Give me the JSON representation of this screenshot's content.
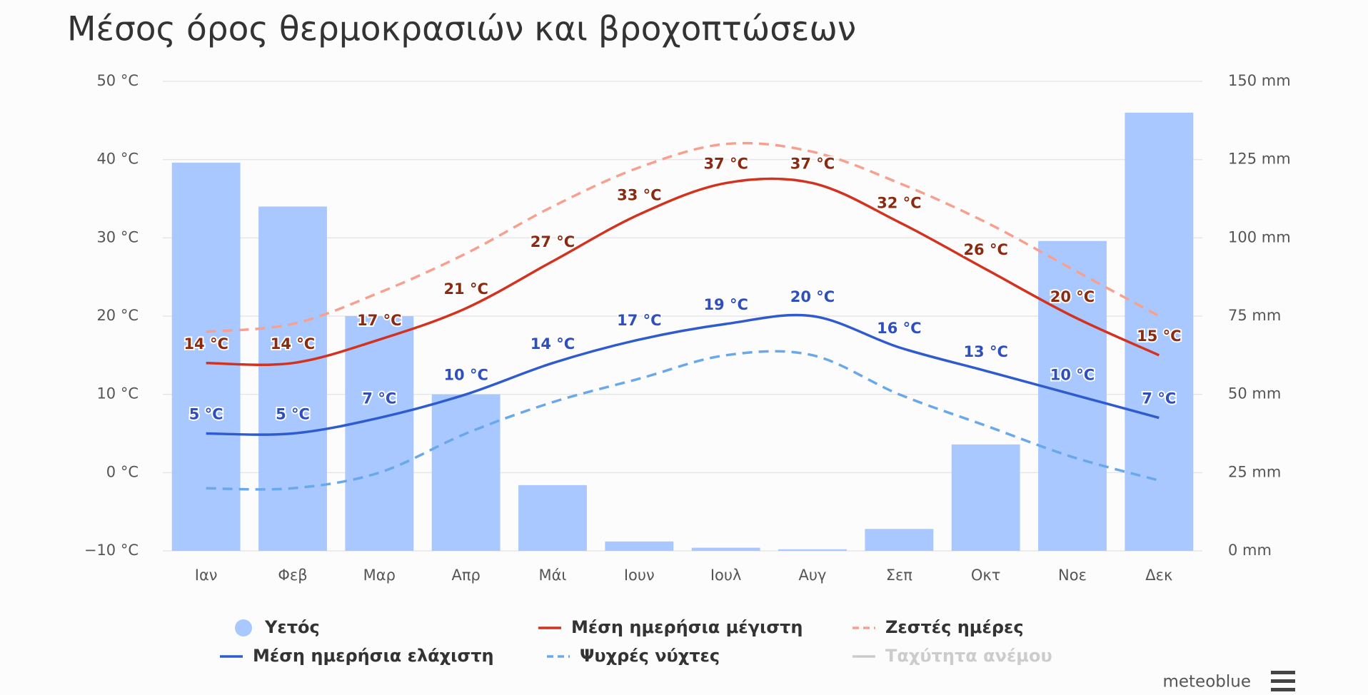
{
  "chart_data": {
    "type": "combo",
    "title": "Μέσος όρος θερμοκρασιών και βροχοπτώσεων",
    "categories": [
      "Ιαν",
      "Φεβ",
      "Μαρ",
      "Απρ",
      "Μάι",
      "Ιουν",
      "Ιουλ",
      "Αυγ",
      "Σεπ",
      "Οκτ",
      "Νοε",
      "Δεκ"
    ],
    "ylim": [
      -10,
      50
    ],
    "yticks": [
      {
        "value": -10,
        "label": "−10 °C"
      },
      {
        "value": 0,
        "label": "0 °C"
      },
      {
        "value": 10,
        "label": "10 °C"
      },
      {
        "value": 20,
        "label": "20 °C"
      },
      {
        "value": 30,
        "label": "30 °C"
      },
      {
        "value": 40,
        "label": "40 °C"
      },
      {
        "value": 50,
        "label": "50 °C"
      }
    ],
    "y2lim": [
      0,
      150
    ],
    "y2ticks": [
      {
        "value": 0,
        "label": "0 mm"
      },
      {
        "value": 25,
        "label": "25 mm"
      },
      {
        "value": 50,
        "label": "50 mm"
      },
      {
        "value": 75,
        "label": "75 mm"
      },
      {
        "value": 100,
        "label": "100 mm"
      },
      {
        "value": 125,
        "label": "125 mm"
      },
      {
        "value": 150,
        "label": "150 mm"
      }
    ],
    "grid": true,
    "series": [
      {
        "name": "Υετός",
        "type": "bar",
        "axis": "y2",
        "color": "#a8c8ff",
        "values": [
          124,
          110,
          75,
          50,
          21,
          3,
          1,
          0.5,
          7,
          34,
          99,
          140
        ]
      },
      {
        "name": "Μέση ημερήσια μέγιστη",
        "type": "line",
        "color": "#d2321e",
        "label_color": "#8b2a10",
        "values": [
          14,
          14,
          17,
          21,
          27,
          33,
          37,
          37,
          32,
          26,
          20,
          15
        ],
        "value_labels": [
          "14 °C",
          "14 °C",
          "17 °C",
          "21 °C",
          "27 °C",
          "33 °C",
          "37 °C",
          "37 °C",
          "32 °C",
          "26 °C",
          "20 °C",
          "15 °C"
        ]
      },
      {
        "name": "Ζεστές ημέρες",
        "type": "line",
        "dashed": true,
        "color": "#f8a090",
        "values": [
          18,
          19,
          23,
          28,
          34,
          39,
          42,
          41,
          37,
          32,
          26,
          20
        ]
      },
      {
        "name": "Μέση ημερήσια ελάχιστη",
        "type": "line",
        "color": "#2f5bd0",
        "label_color": "#2f4fbf",
        "values": [
          5,
          5,
          7,
          10,
          14,
          17,
          19,
          20,
          16,
          13,
          10,
          7
        ],
        "value_labels": [
          "5 °C",
          "5 °C",
          "7 °C",
          "10 °C",
          "14 °C",
          "17 °C",
          "19 °C",
          "20 °C",
          "16 °C",
          "13 °C",
          "10 °C",
          "7 °C"
        ]
      },
      {
        "name": "Ψυχρές νύχτες",
        "type": "line",
        "dashed": true,
        "color": "#6aa8ec",
        "values": [
          -2,
          -2,
          0,
          5,
          9,
          12,
          15,
          15,
          10,
          6,
          2,
          -1
        ]
      }
    ],
    "hidden_series": [
      {
        "name": "Ταχύτητα ανέμου",
        "color": "#cccccc"
      }
    ],
    "credit": "meteoblue"
  }
}
